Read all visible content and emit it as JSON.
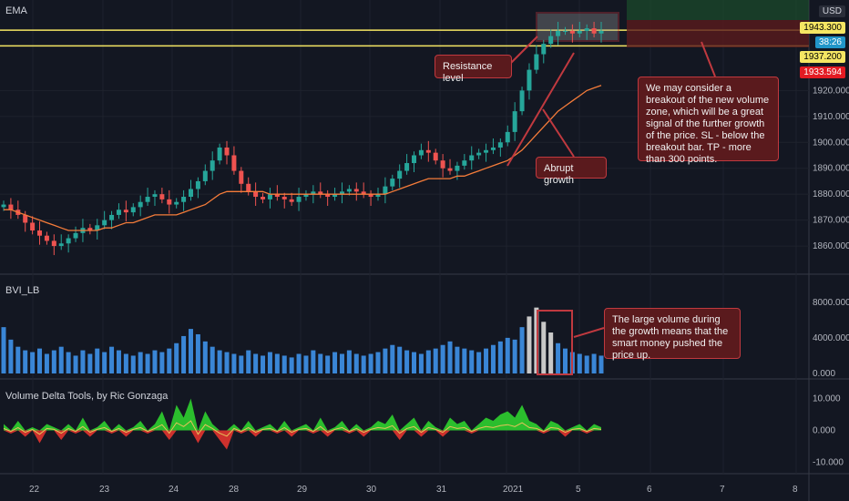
{
  "indicators": {
    "top_label": "EMA",
    "bvi_label": "BVI_LB",
    "delta_label": "Volume Delta Tools, by Ric Gonzaga"
  },
  "price_axis": {
    "ticks": [
      "1920.000",
      "1910.000",
      "1900.000",
      "1890.000",
      "1880.000",
      "1870.000",
      "1860.000"
    ],
    "currency": "USD",
    "tags": [
      {
        "text": "1943.300",
        "color": "#f5e663"
      },
      {
        "text": "38:26",
        "color": "#2196c9"
      },
      {
        "text": "1937.200",
        "color": "#f5e663"
      },
      {
        "text": "1933.594",
        "color": "#e31b23"
      }
    ]
  },
  "volume_axis": {
    "ticks": [
      "8000.000",
      "4000.000",
      "0.000"
    ]
  },
  "delta_axis": {
    "ticks": [
      "10.000",
      "0.000",
      "-10.000"
    ]
  },
  "x_axis": {
    "ticks": [
      "22",
      "23",
      "24",
      "28",
      "29",
      "30",
      "31",
      "2021",
      "5",
      "6",
      "7",
      "8"
    ]
  },
  "annotations": {
    "resistance": "Resistance level",
    "abrupt": "Abrupt growth",
    "breakout": "We may consider a breakout of the new volume zone, which will be a great signal of the further growth of the price. SL - below the breakout bar. TP - more than 300 points.",
    "volume": "The large volume during the growth means that the smart money pushed the price up."
  },
  "chart_data": {
    "type": "candlestick",
    "y_range": [
      1853,
      1950
    ],
    "x_start": "Dec 21",
    "resistance_levels": [
      1943.3,
      1937.2
    ],
    "close_series": [
      1876,
      1874,
      1872,
      1869,
      1866,
      1864,
      1862,
      1860,
      1861,
      1863,
      1865,
      1867,
      1866,
      1868,
      1870,
      1872,
      1874,
      1873,
      1875,
      1877,
      1879,
      1880,
      1878,
      1876,
      1877,
      1879,
      1882,
      1885,
      1889,
      1893,
      1898,
      1895,
      1889,
      1884,
      1881,
      1879,
      1878,
      1880,
      1879,
      1878,
      1877,
      1879,
      1880,
      1881,
      1880,
      1879,
      1880,
      1881,
      1882,
      1881,
      1880,
      1879,
      1880,
      1883,
      1886,
      1889,
      1892,
      1895,
      1897,
      1896,
      1893,
      1890,
      1889,
      1891,
      1893,
      1895,
      1896,
      1897,
      1898,
      1900,
      1904,
      1912,
      1920,
      1928,
      1934,
      1938,
      1941,
      1943,
      1943,
      1942,
      1943,
      1944,
      1942,
      1943
    ],
    "volume_series": [
      5200,
      3800,
      3000,
      2600,
      2400,
      2800,
      2200,
      2600,
      3000,
      2400,
      2000,
      2600,
      2200,
      2800,
      2400,
      3000,
      2600,
      2200,
      2000,
      2400,
      2200,
      2600,
      2400,
      2800,
      3400,
      4200,
      5000,
      4400,
      3600,
      3000,
      2600,
      2400,
      2200,
      2000,
      2600,
      2200,
      2000,
      2400,
      2200,
      2000,
      1800,
      2200,
      2000,
      2600,
      2200,
      2000,
      2400,
      2200,
      2600,
      2200,
      2000,
      2200,
      2400,
      2800,
      3200,
      3000,
      2600,
      2400,
      2200,
      2600,
      2800,
      3200,
      3600,
      3000,
      2800,
      2600,
      2400,
      2800,
      3200,
      3600,
      4000,
      3800,
      5200,
      6400,
      7400,
      5800,
      4600,
      3400,
      2800,
      2400,
      2200,
      2000,
      2200,
      2000
    ],
    "delta_series": [
      2,
      -1,
      3,
      -2,
      1,
      -4,
      2,
      1,
      -3,
      2,
      -1,
      4,
      -2,
      1,
      3,
      -1,
      2,
      -2,
      1,
      3,
      -1,
      2,
      6,
      -3,
      8,
      4,
      10,
      -4,
      6,
      2,
      -3,
      -6,
      2,
      -1,
      3,
      -2,
      1,
      2,
      -1,
      3,
      -2,
      1,
      2,
      -1,
      4,
      -2,
      1,
      3,
      -1,
      2,
      -2,
      1,
      3,
      2,
      5,
      -3,
      2,
      4,
      -2,
      3,
      1,
      -2,
      4,
      2,
      3,
      -1,
      2,
      4,
      3,
      5,
      6,
      4,
      8,
      3,
      2,
      -1,
      3,
      2,
      -2,
      1,
      2,
      -1,
      2,
      1
    ],
    "ema_series": [
      1874,
      1874,
      1873,
      1872,
      1871,
      1870,
      1869,
      1868,
      1867,
      1866,
      1866,
      1866,
      1866,
      1866,
      1867,
      1867,
      1868,
      1869,
      1869,
      1870,
      1871,
      1872,
      1872,
      1872,
      1872,
      1873,
      1874,
      1875,
      1876,
      1878,
      1880,
      1881,
      1881,
      1881,
      1881,
      1881,
      1881,
      1880,
      1880,
      1880,
      1880,
      1880,
      1880,
      1880,
      1880,
      1880,
      1880,
      1880,
      1880,
      1880,
      1880,
      1880,
      1880,
      1880,
      1881,
      1882,
      1883,
      1884,
      1885,
      1886,
      1886,
      1886,
      1886,
      1887,
      1887,
      1888,
      1889,
      1890,
      1891,
      1892,
      1893,
      1895,
      1897,
      1900,
      1903,
      1906,
      1909,
      1912,
      1914,
      1916,
      1918,
      1920,
      1921,
      1922
    ]
  }
}
